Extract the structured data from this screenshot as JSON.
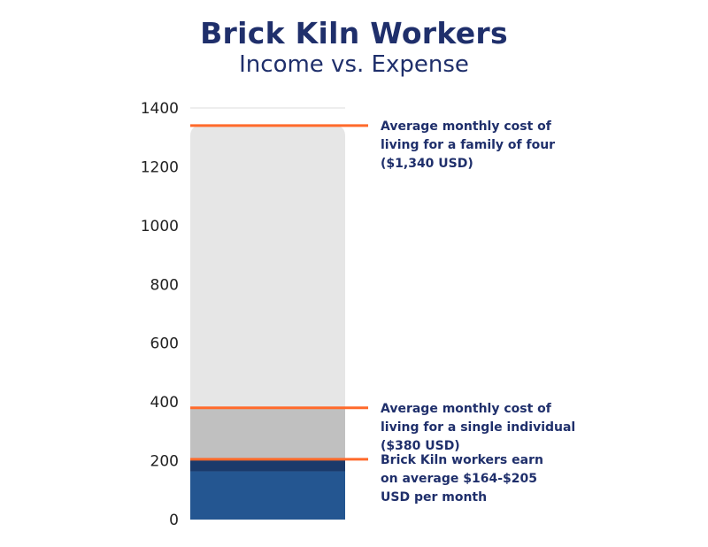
{
  "chart_data": {
    "type": "bar",
    "title": "Brick Kiln Workers",
    "subtitle": "Income vs. Expense",
    "xlabel": "",
    "ylabel": "",
    "ylim": [
      0,
      1400
    ],
    "yticks": [
      0,
      200,
      400,
      600,
      800,
      1000,
      1200,
      1400
    ],
    "grid": false,
    "segments": [
      {
        "from": 0,
        "to": 164,
        "color": "#245691"
      },
      {
        "from": 164,
        "to": 205,
        "color": "#1b3a6b"
      },
      {
        "from": 205,
        "to": 380,
        "color": "#c0c0c0"
      },
      {
        "from": 380,
        "to": 1340,
        "color": "#e6e6e6"
      }
    ],
    "reference_lines": [
      {
        "value": 1340,
        "color": "#ff6a2b",
        "label_lines": [
          "Average monthly cost of",
          "living for a family of four",
          "($1,340 USD)"
        ]
      },
      {
        "value": 380,
        "color": "#ff6a2b",
        "label_lines": [
          "Average monthly cost of",
          "living for a single individual",
          "($380 USD)"
        ]
      },
      {
        "value": 205,
        "color": "#ff6a2b",
        "label_lines": [
          "Brick Kiln workers earn",
          "on average $164-$205",
          "USD per month"
        ]
      }
    ]
  }
}
